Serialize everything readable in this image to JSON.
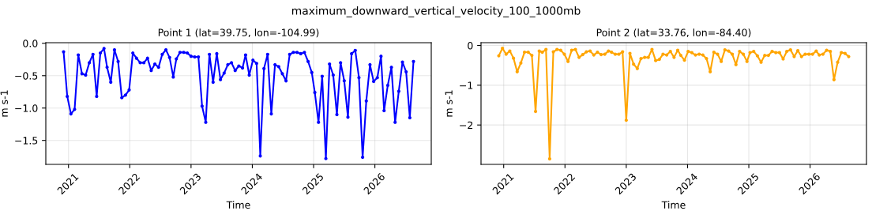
{
  "chart_data": [
    {
      "type": "line",
      "title": "Point 1 (lat=39.75, lon=-104.99)",
      "xlabel": "Time",
      "ylabel": "m s-1",
      "annotations": [
        "maximum_downward_vertical_velocity_100_1000mb"
      ],
      "x": [
        2020.92,
        2020.98,
        2021.04,
        2021.1,
        2021.16,
        2021.22,
        2021.28,
        2021.34,
        2021.4,
        2021.46,
        2021.52,
        2021.58,
        2021.63,
        2021.69,
        2021.75,
        2021.81,
        2021.87,
        2021.93,
        2021.99,
        2022.05,
        2022.11,
        2022.17,
        2022.23,
        2022.29,
        2022.35,
        2022.41,
        2022.47,
        2022.53,
        2022.59,
        2022.65,
        2022.71,
        2022.76,
        2022.82,
        2022.88,
        2022.94,
        2023.0,
        2023.06,
        2023.12,
        2023.18,
        2023.24,
        2023.3,
        2023.36,
        2023.42,
        2023.48,
        2023.54,
        2023.6,
        2023.66,
        2023.72,
        2023.78,
        2023.84,
        2023.89,
        2023.95,
        2024.01,
        2024.07,
        2024.13,
        2024.19,
        2024.25,
        2024.31,
        2024.37,
        2024.43,
        2024.49,
        2024.55,
        2024.61,
        2024.67,
        2024.73,
        2024.79,
        2024.85,
        2024.91,
        2024.97,
        2025.02,
        2025.08,
        2025.14,
        2025.2,
        2025.26,
        2025.32,
        2025.38,
        2025.44,
        2025.5,
        2025.56,
        2025.62,
        2025.68,
        2025.74,
        2025.8,
        2025.86,
        2025.92,
        2025.98,
        2026.04,
        2026.1,
        2026.15,
        2026.21,
        2026.27,
        2026.33,
        2026.39,
        2026.45,
        2026.51,
        2026.57,
        2026.63
      ],
      "series": [
        {
          "color": "#0000ff",
          "values": [
            -0.13,
            -0.82,
            -1.09,
            -1.02,
            -0.18,
            -0.47,
            -0.49,
            -0.3,
            -0.17,
            -0.82,
            -0.15,
            -0.08,
            -0.37,
            -0.6,
            -0.1,
            -0.28,
            -0.84,
            -0.8,
            -0.72,
            -0.15,
            -0.23,
            -0.3,
            -0.3,
            -0.23,
            -0.42,
            -0.32,
            -0.37,
            -0.17,
            -0.1,
            -0.22,
            -0.52,
            -0.24,
            -0.14,
            -0.14,
            -0.15,
            -0.2,
            -0.21,
            -0.21,
            -0.97,
            -1.22,
            -0.17,
            -0.6,
            -0.16,
            -0.56,
            -0.46,
            -0.33,
            -0.3,
            -0.42,
            -0.35,
            -0.38,
            -0.18,
            -0.49,
            -0.26,
            -0.31,
            -1.74,
            -0.39,
            -0.17,
            -1.09,
            -0.33,
            -0.36,
            -0.47,
            -0.58,
            -0.17,
            -0.14,
            -0.14,
            -0.16,
            -0.14,
            -0.28,
            -0.45,
            -0.76,
            -1.22,
            -0.51,
            -1.78,
            -0.32,
            -0.49,
            -1.1,
            -0.3,
            -0.58,
            -1.14,
            -0.16,
            -0.11,
            -0.53,
            -1.76,
            -0.89,
            -0.33,
            -0.59,
            -0.53,
            -0.2,
            -1.04,
            -0.65,
            -0.37,
            -1.22,
            -0.74,
            -0.29,
            -0.44,
            -1.15,
            -0.28
          ]
        }
      ],
      "xlim": [
        2020.63,
        2026.92
      ],
      "xticks": [
        2021,
        2022,
        2023,
        2024,
        2025,
        2026
      ],
      "ylim": [
        -1.87,
        0.01
      ],
      "yticks": [
        {
          "value": -1.5,
          "label": "−1.5"
        },
        {
          "value": -1.0,
          "label": "−1.0"
        },
        {
          "value": -0.5,
          "label": "−0.5"
        },
        {
          "value": 0.0,
          "label": "0.0"
        }
      ],
      "grid": true,
      "legend": false,
      "marker": "circle",
      "line_style": "solid"
    },
    {
      "type": "line",
      "title": "Point 2 (lat=33.76, lon=-84.40)",
      "xlabel": "Time",
      "ylabel": "m s-1",
      "x": [
        2020.92,
        2020.98,
        2021.04,
        2021.1,
        2021.16,
        2021.22,
        2021.28,
        2021.34,
        2021.4,
        2021.46,
        2021.52,
        2021.58,
        2021.63,
        2021.69,
        2021.75,
        2021.81,
        2021.87,
        2021.93,
        2021.99,
        2022.05,
        2022.11,
        2022.17,
        2022.23,
        2022.29,
        2022.35,
        2022.41,
        2022.47,
        2022.53,
        2022.59,
        2022.65,
        2022.71,
        2022.76,
        2022.82,
        2022.88,
        2022.94,
        2023.0,
        2023.06,
        2023.12,
        2023.18,
        2023.24,
        2023.3,
        2023.36,
        2023.42,
        2023.48,
        2023.54,
        2023.6,
        2023.66,
        2023.72,
        2023.78,
        2023.84,
        2023.89,
        2023.95,
        2024.01,
        2024.07,
        2024.13,
        2024.19,
        2024.25,
        2024.31,
        2024.37,
        2024.43,
        2024.49,
        2024.55,
        2024.61,
        2024.67,
        2024.73,
        2024.79,
        2024.85,
        2024.91,
        2024.97,
        2025.02,
        2025.08,
        2025.14,
        2025.2,
        2025.26,
        2025.32,
        2025.38,
        2025.44,
        2025.5,
        2025.56,
        2025.62,
        2025.68,
        2025.74,
        2025.8,
        2025.86,
        2025.92,
        2025.98,
        2026.04,
        2026.1,
        2026.15,
        2026.21,
        2026.27,
        2026.33,
        2026.39,
        2026.45,
        2026.51,
        2026.57,
        2026.63
      ],
      "series": [
        {
          "color": "#ffa500",
          "values": [
            -0.26,
            -0.07,
            -0.22,
            -0.14,
            -0.32,
            -0.66,
            -0.44,
            -0.17,
            -0.17,
            -0.25,
            -1.66,
            -0.14,
            -0.17,
            -0.1,
            -2.85,
            -0.16,
            -0.1,
            -0.12,
            -0.22,
            -0.4,
            -0.12,
            -0.1,
            -0.3,
            -0.23,
            -0.16,
            -0.14,
            -0.24,
            -0.17,
            -0.23,
            -0.22,
            -0.14,
            -0.17,
            -0.22,
            -0.22,
            -0.16,
            -1.88,
            -0.2,
            -0.47,
            -0.58,
            -0.33,
            -0.3,
            -0.3,
            -0.1,
            -0.38,
            -0.35,
            -0.22,
            -0.24,
            -0.15,
            -0.3,
            -0.12,
            -0.25,
            -0.37,
            -0.15,
            -0.18,
            -0.24,
            -0.22,
            -0.24,
            -0.33,
            -0.66,
            -0.17,
            -0.22,
            -0.4,
            -0.11,
            -0.14,
            -0.22,
            -0.48,
            -0.15,
            -0.22,
            -0.4,
            -0.18,
            -0.15,
            -0.26,
            -0.42,
            -0.25,
            -0.25,
            -0.15,
            -0.18,
            -0.18,
            -0.34,
            -0.15,
            -0.11,
            -0.28,
            -0.13,
            -0.28,
            -0.22,
            -0.22,
            -0.22,
            -0.14,
            -0.24,
            -0.22,
            -0.12,
            -0.15,
            -0.86,
            -0.42,
            -0.18,
            -0.2,
            -0.28
          ]
        }
      ],
      "xlim": [
        2020.63,
        2026.92
      ],
      "xticks": [
        2021,
        2022,
        2023,
        2024,
        2025,
        2026
      ],
      "ylim": [
        -2.99,
        0.07
      ],
      "yticks": [
        {
          "value": -2,
          "label": "−2"
        },
        {
          "value": -1,
          "label": "−1"
        },
        {
          "value": 0,
          "label": "0"
        }
      ],
      "grid": true,
      "legend": false,
      "marker": "circle",
      "line_style": "solid"
    }
  ]
}
